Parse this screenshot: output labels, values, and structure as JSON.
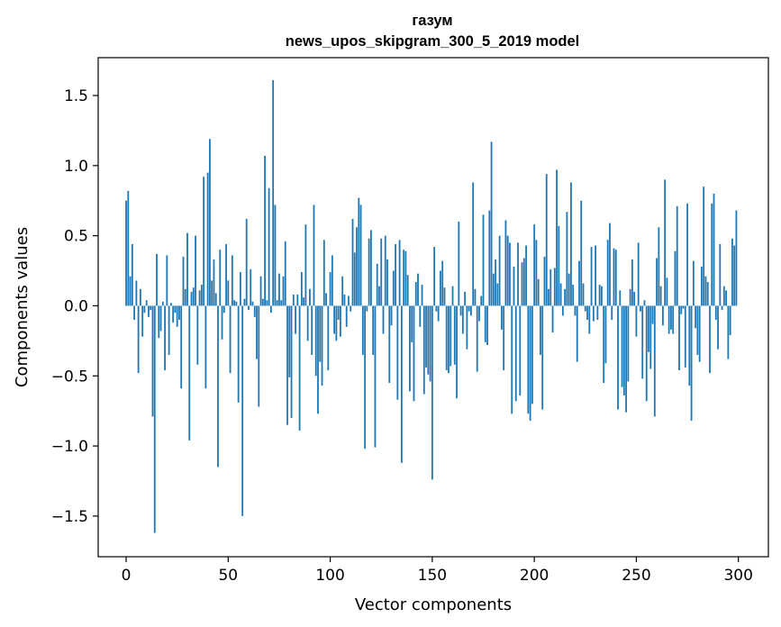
{
  "chart_data": {
    "type": "bar",
    "title": "газум",
    "subtitle": "news_upos_skipgram_300_5_2019 model",
    "xlabel": "Vector components",
    "ylabel": "Components values",
    "xlim": [
      -13.7,
      314.7
    ],
    "ylim": [
      -1.79,
      1.77
    ],
    "xticks": [
      0,
      50,
      100,
      150,
      200,
      250,
      300
    ],
    "xtick_labels": [
      "0",
      "50",
      "100",
      "150",
      "200",
      "250",
      "300"
    ],
    "yticks": [
      -1.5,
      -1.0,
      -0.5,
      0.0,
      0.5,
      1.0,
      1.5
    ],
    "ytick_labels": [
      "−1.5",
      "−1.0",
      "−0.5",
      "0.0",
      "0.5",
      "1.0",
      "1.5"
    ],
    "color": "#1f77b4",
    "x_start": 0,
    "values": [
      0.75,
      0.82,
      0.21,
      0.44,
      -0.1,
      0.18,
      -0.48,
      0.12,
      -0.22,
      -0.05,
      0.04,
      -0.08,
      -0.03,
      -0.79,
      -1.62,
      0.37,
      -0.23,
      -0.18,
      0.03,
      -0.46,
      0.36,
      -0.35,
      0.02,
      -0.12,
      -0.05,
      -0.15,
      -0.1,
      -0.59,
      0.35,
      0.12,
      0.52,
      -0.96,
      0.1,
      0.13,
      0.5,
      -0.42,
      0.11,
      0.15,
      0.92,
      -0.59,
      0.95,
      1.19,
      0.18,
      0.33,
      0.09,
      -1.15,
      0.4,
      -0.24,
      -0.05,
      0.44,
      0.18,
      -0.48,
      0.36,
      0.04,
      0.03,
      -0.69,
      0.24,
      -1.5,
      0.05,
      0.62,
      -0.03,
      0.26,
      0.03,
      -0.08,
      -0.38,
      -0.72,
      0.21,
      0.05,
      1.07,
      0.04,
      0.84,
      -0.05,
      1.61,
      0.72,
      0.04,
      0.23,
      0.04,
      0.21,
      0.46,
      -0.85,
      -0.51,
      -0.8,
      0.08,
      -0.2,
      0.08,
      -0.89,
      0.24,
      0.06,
      0.58,
      -0.25,
      0.12,
      -0.35,
      0.72,
      -0.5,
      -0.77,
      -0.4,
      -0.57,
      0.47,
      0.09,
      -0.46,
      0.24,
      0.36,
      -0.2,
      -0.25,
      -0.1,
      -0.22,
      0.21,
      0.08,
      -0.15,
      0.07,
      -0.04,
      0.62,
      0.38,
      0.56,
      0.77,
      0.72,
      -0.35,
      -1.02,
      -0.04,
      0.48,
      0.54,
      -0.35,
      -1.01,
      0.3,
      0.14,
      0.48,
      -0.2,
      0.5,
      0.33,
      -0.55,
      -0.14,
      0.25,
      0.44,
      -0.67,
      0.47,
      -1.12,
      0.4,
      0.39,
      0.22,
      -0.61,
      -0.26,
      -0.68,
      0.17,
      0.23,
      -0.15,
      0.15,
      -0.63,
      -0.44,
      -0.49,
      -0.54,
      -1.24,
      0.42,
      -0.04,
      -0.11,
      0.25,
      0.32,
      0.13,
      -0.46,
      -0.48,
      -0.43,
      0.14,
      -0.42,
      -0.66,
      0.6,
      -0.07,
      -0.2,
      0.1,
      -0.31,
      -0.04,
      -0.07,
      0.88,
      0.12,
      -0.47,
      -0.11,
      0.07,
      0.65,
      -0.26,
      -0.28,
      0.68,
      1.17,
      0.23,
      0.33,
      0.16,
      0.5,
      -0.17,
      -0.46,
      0.61,
      0.5,
      0.45,
      -0.77,
      0.28,
      -0.68,
      0.45,
      -0.64,
      0.31,
      0.34,
      0.43,
      -0.77,
      -0.82,
      -0.7,
      0.58,
      0.47,
      0.19,
      -0.35,
      -0.74,
      0.35,
      0.94,
      0.12,
      0.26,
      -0.19,
      0.27,
      0.97,
      0.57,
      0.16,
      -0.07,
      0.12,
      0.67,
      0.23,
      0.88,
      0.15,
      -0.07,
      -0.4,
      0.32,
      0.75,
      0.16,
      -0.04,
      -0.1,
      -0.2,
      0.42,
      -0.11,
      0.43,
      -0.1,
      0.15,
      0.14,
      -0.55,
      -0.41,
      0.47,
      0.59,
      -0.1,
      0.41,
      0.4,
      -0.74,
      0.11,
      -0.58,
      -0.64,
      -0.76,
      -0.54,
      0.12,
      0.33,
      0.1,
      -0.22,
      0.45,
      -0.04,
      -0.52,
      0.04,
      -0.68,
      -0.33,
      -0.45,
      -0.13,
      -0.79,
      0.34,
      0.56,
      0.14,
      -0.14,
      0.9,
      0.2,
      -0.2,
      -0.17,
      -0.2,
      0.39,
      0.71,
      -0.46,
      -0.06,
      -0.02,
      -0.44,
      0.73,
      -0.57,
      -0.82,
      0.32,
      -0.16,
      -0.35,
      -0.4,
      0.28,
      0.85,
      0.21,
      0.17,
      -0.48,
      0.73,
      0.8,
      -0.1,
      -0.31,
      0.44,
      -0.03,
      0.14,
      0.11,
      -0.38,
      -0.21,
      0.48,
      0.43,
      0.68
    ]
  }
}
